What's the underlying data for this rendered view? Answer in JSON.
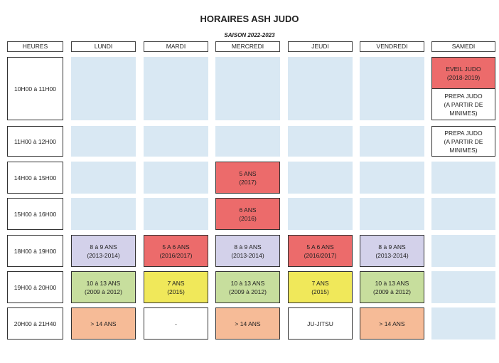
{
  "title": "HORAIRES ASH JUDO",
  "season": "SAISON 2022-2023",
  "headers": [
    "HEURES",
    "LUNDI",
    "MARDI",
    "MERCREDI",
    "JEUDI",
    "VENDREDI",
    "SAMEDI"
  ],
  "rows": [
    {
      "time": "10H00 à 11H00",
      "cells": [
        null,
        null,
        null,
        null,
        null,
        {
          "split": true,
          "top": {
            "lines": [
              "EVEIL JUDO",
              "(2018-2019)"
            ],
            "color": "#ec6b6b"
          },
          "bottom": {
            "lines": [
              "PREPA JUDO",
              "(A PARTIR DE",
              "MINIMES)"
            ],
            "color": "#ffffff"
          }
        }
      ]
    },
    {
      "time": "11H00 à 12H00",
      "cells": [
        null,
        null,
        null,
        null,
        null,
        {
          "lines": [
            "PREPA JUDO",
            "(A PARTIR DE",
            "MINIMES)"
          ],
          "color": "#ffffff"
        }
      ]
    },
    {
      "time": "14H00 à 15H00",
      "cells": [
        null,
        null,
        {
          "lines": [
            "5 ANS",
            "(2017)"
          ],
          "color": "#ec6b6b"
        },
        null,
        null,
        null
      ]
    },
    {
      "time": "15H00 à 16H00",
      "cells": [
        null,
        null,
        {
          "lines": [
            "6 ANS",
            "(2016)"
          ],
          "color": "#ec6b6b"
        },
        null,
        null,
        null
      ]
    },
    {
      "time": "18H00 à 19H00",
      "cells": [
        {
          "lines": [
            "8 à 9 ANS",
            "(2013-2014)"
          ],
          "color": "#d3d1ea"
        },
        {
          "lines": [
            "5 A 6 ANS",
            "(2016/2017)"
          ],
          "color": "#ec6b6b"
        },
        {
          "lines": [
            "8 à 9 ANS",
            "(2013-2014)"
          ],
          "color": "#d3d1ea"
        },
        {
          "lines": [
            "5 A 6 ANS",
            "(2016/2017)"
          ],
          "color": "#ec6b6b"
        },
        {
          "lines": [
            "8 à 9 ANS",
            "(2013-2014)"
          ],
          "color": "#d3d1ea"
        },
        null
      ]
    },
    {
      "time": "19H00 à 20H00",
      "cells": [
        {
          "lines": [
            "10 à 13 ANS",
            "(2009 à 2012)"
          ],
          "color": "#c7de9d"
        },
        {
          "lines": [
            "7 ANS",
            "(2015)"
          ],
          "color": "#f0e85a"
        },
        {
          "lines": [
            "10 à 13 ANS",
            "(2009 à 2012)"
          ],
          "color": "#c7de9d"
        },
        {
          "lines": [
            "7 ANS",
            "(2015)"
          ],
          "color": "#f0e85a"
        },
        {
          "lines": [
            "10 à 13 ANS",
            "(2009 à 2012)"
          ],
          "color": "#c7de9d"
        },
        null
      ]
    },
    {
      "time": "20H00 à 21H40",
      "cells": [
        {
          "lines": [
            "> 14 ANS"
          ],
          "color": "#f6bb97"
        },
        {
          "lines": [
            "-"
          ],
          "color": "#ffffff"
        },
        {
          "lines": [
            "> 14 ANS"
          ],
          "color": "#f6bb97"
        },
        {
          "lines": [
            "JU-JITSU"
          ],
          "color": "#ffffff"
        },
        {
          "lines": [
            "> 14 ANS"
          ],
          "color": "#f6bb97"
        },
        null
      ]
    }
  ],
  "colors": {
    "empty": "#d9e8f3",
    "red": "#ec6b6b",
    "lavender": "#d3d1ea",
    "yellow": "#f0e85a",
    "green": "#c7de9d",
    "peach": "#f6bb97"
  }
}
